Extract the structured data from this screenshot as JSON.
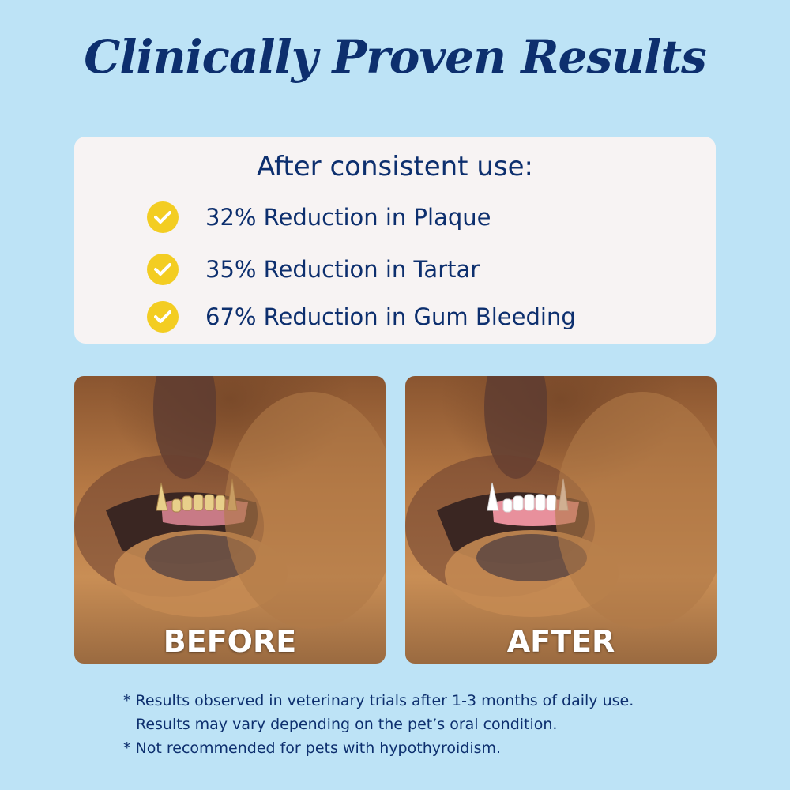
{
  "title": "Clinically Proven Results",
  "card": {
    "heading": "After consistent use:",
    "stats": [
      {
        "text": "32% Reduction in Plaque",
        "icon": "check-circle-icon"
      },
      {
        "text": "35% Reduction in Tartar",
        "icon": "check-circle-icon"
      },
      {
        "text": "67% Reduction in Gum Bleeding",
        "icon": "check-circle-icon"
      }
    ]
  },
  "photos": {
    "before_label": "BEFORE",
    "after_label": "AFTER"
  },
  "footnotes": {
    "line1": "* Results observed in veterinary trials after 1-3 months of daily use.",
    "line2": "Results may vary depending on the pet’s oral condition.",
    "line3": "* Not recommended for pets with hypothyroidism."
  },
  "colors": {
    "background": "#bde3f6",
    "navy": "#0d2f6e",
    "check_yellow": "#f3cd22",
    "card": "#f7f3f3"
  }
}
